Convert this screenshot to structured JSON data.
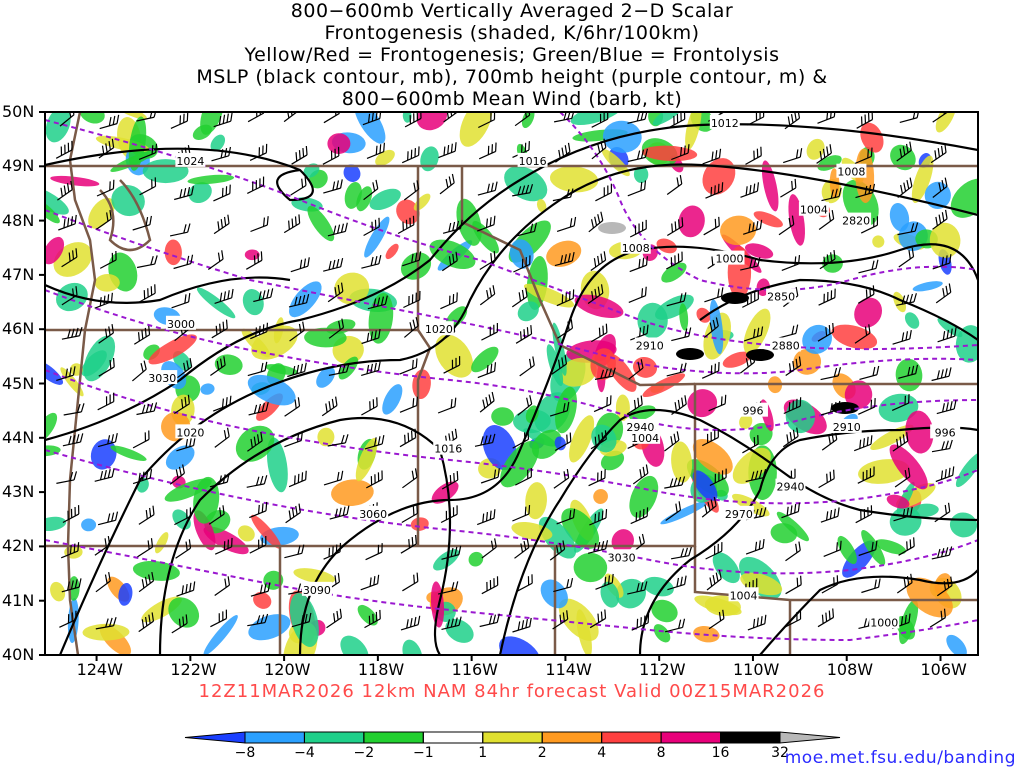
{
  "title_lines": [
    "800−600mb Vertically Averaged 2−D Scalar",
    "Frontogenesis (shaded, K/6hr/100km)",
    "Yellow/Red = Frontogenesis;  Green/Blue = Frontolysis",
    "MSLP (black contour, mb), 700mb height (purple contour, m) &",
    "800−600mb Mean Wind (barb, kt)"
  ],
  "map": {
    "lat_labels": [
      "50N",
      "49N",
      "48N",
      "47N",
      "46N",
      "45N",
      "44N",
      "43N",
      "42N",
      "41N",
      "40N"
    ],
    "lat_values": [
      50,
      49,
      48,
      47,
      46,
      45,
      44,
      43,
      42,
      41,
      40
    ],
    "lon_labels": [
      "124W",
      "122W",
      "120W",
      "118W",
      "116W",
      "114W",
      "112W",
      "110W",
      "108W",
      "106W"
    ],
    "lon_values": [
      -124,
      -122,
      -120,
      -118,
      -116,
      -114,
      -112,
      -110,
      -108,
      -106
    ],
    "lon_range": [
      -125.1,
      -105.2
    ],
    "lat_range": [
      40,
      50
    ],
    "mslp_labels": [
      {
        "text": "1024",
        "lon": -122.0,
        "lat": 49.1
      },
      {
        "text": "1016",
        "lon": -114.7,
        "lat": 49.1
      },
      {
        "text": "1012",
        "lon": -110.6,
        "lat": 49.8
      },
      {
        "text": "1008",
        "lon": -107.9,
        "lat": 48.9
      },
      {
        "text": "1004",
        "lon": -108.7,
        "lat": 48.2
      },
      {
        "text": "1008",
        "lon": -112.5,
        "lat": 47.5
      },
      {
        "text": "1000",
        "lon": -110.5,
        "lat": 47.3
      },
      {
        "text": "1020",
        "lon": -116.7,
        "lat": 46.0
      },
      {
        "text": "1020",
        "lon": -122.0,
        "lat": 44.1
      },
      {
        "text": "1016",
        "lon": -116.5,
        "lat": 43.8
      },
      {
        "text": "1004",
        "lon": -112.3,
        "lat": 44.0
      },
      {
        "text": "996",
        "lon": -110.0,
        "lat": 44.5
      },
      {
        "text": "996",
        "lon": -105.9,
        "lat": 44.1
      },
      {
        "text": "1004",
        "lon": -110.2,
        "lat": 41.1
      },
      {
        "text": "1000",
        "lon": -107.2,
        "lat": 40.6
      }
    ],
    "height_labels": [
      {
        "text": "3000",
        "lon": -122.2,
        "lat": 46.1
      },
      {
        "text": "3030",
        "lon": -122.6,
        "lat": 45.1
      },
      {
        "text": "3060",
        "lon": -118.1,
        "lat": 42.6
      },
      {
        "text": "3090",
        "lon": -119.3,
        "lat": 41.2
      },
      {
        "text": "3030",
        "lon": -112.8,
        "lat": 41.8
      },
      {
        "text": "2970",
        "lon": -110.3,
        "lat": 42.6
      },
      {
        "text": "2940",
        "lon": -109.2,
        "lat": 43.1
      },
      {
        "text": "2910",
        "lon": -108.0,
        "lat": 44.2
      },
      {
        "text": "2940",
        "lon": -112.4,
        "lat": 44.2
      },
      {
        "text": "2910",
        "lon": -112.2,
        "lat": 45.7
      },
      {
        "text": "2880",
        "lon": -109.3,
        "lat": 45.7
      },
      {
        "text": "2850",
        "lon": -109.4,
        "lat": 46.6
      },
      {
        "text": "2820",
        "lon": -107.8,
        "lat": 48.0
      }
    ]
  },
  "forecast_label": "12Z11MAR2026 12km NAM 84hr forecast Valid 00Z15MAR2026",
  "colorbar": {
    "ticks": [
      "−8",
      "−4",
      "−2",
      "−1",
      "1",
      "2",
      "4",
      "8",
      "16",
      "32"
    ],
    "colors": [
      "#1a3fff",
      "#2aa0ff",
      "#1fd08a",
      "#22d030",
      "#ffffff",
      "#e0e030",
      "#ff9a20",
      "#ff4040",
      "#e8007a",
      "#000000",
      "#b8b8b8"
    ]
  },
  "source_credit": "moe.met.fsu.edu/banding"
}
